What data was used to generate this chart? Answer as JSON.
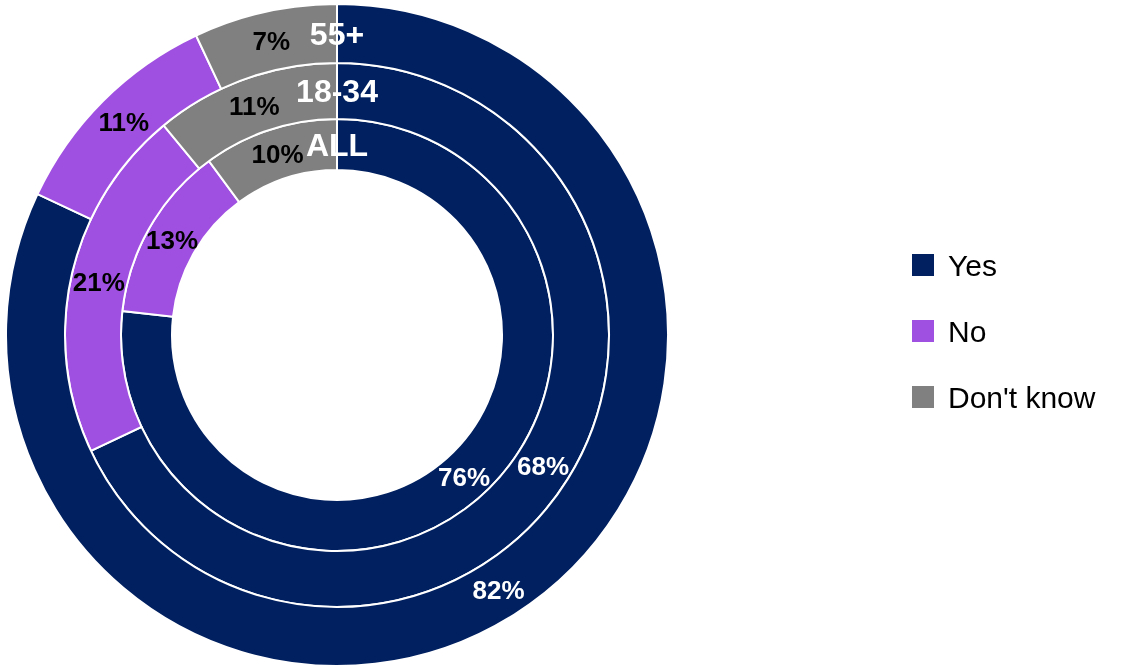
{
  "chart_data": {
    "type": "donut",
    "categories": [
      "Yes",
      "No",
      "Don't know"
    ],
    "colors": [
      "#002060",
      "#a050e0",
      "#808080"
    ],
    "series": [
      {
        "name": "ALL",
        "values": [
          76,
          13,
          10
        ],
        "value_labels": [
          "76%",
          "13%",
          "10%"
        ]
      },
      {
        "name": "18-34",
        "values": [
          68,
          21,
          11
        ],
        "value_labels": [
          "68%",
          "21%",
          "11%"
        ]
      },
      {
        "name": "55+",
        "values": [
          82,
          11,
          7
        ],
        "value_labels": [
          "82%",
          "11%",
          "7%"
        ]
      }
    ],
    "legend": "right"
  }
}
